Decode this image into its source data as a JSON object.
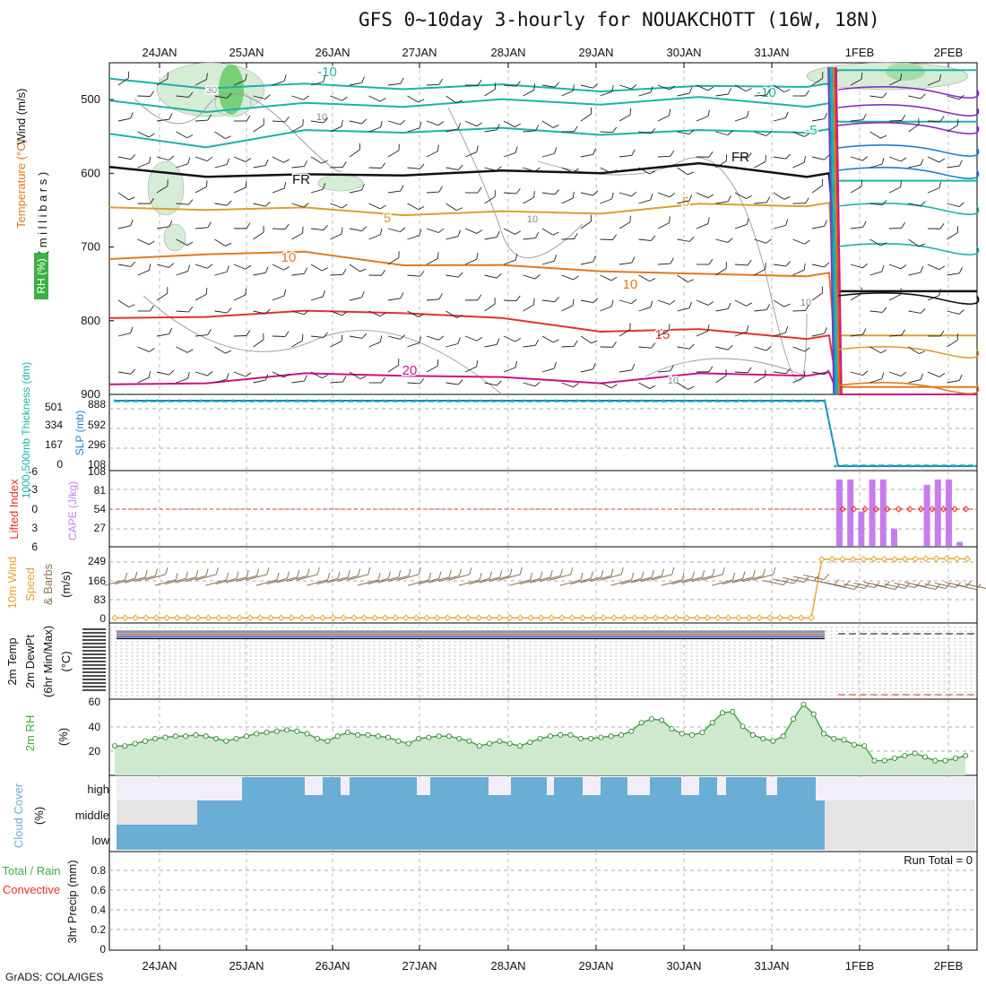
{
  "title": "GFS 0~10day 3-hourly for NOUAKCHOTT (16W, 18N)",
  "credit": "GrADS: COLA/IGES",
  "days": [
    "24JAN",
    "25JAN",
    "26JAN",
    "27JAN",
    "28JAN",
    "29JAN",
    "30JAN",
    "31JAN",
    "1FEB",
    "2FEB"
  ],
  "colors": {
    "temp_warm": "#e8302a",
    "temp_orange": "#e07a1e",
    "temp_gold": "#d9a030",
    "teal": "#19b3a8",
    "blue": "#1a7fd0",
    "purple": "#8a2bc7",
    "magenta": "#cc1188",
    "rh": "#3cb043",
    "cape": "#c77cee",
    "cloud": "#6aaed6",
    "wind": "#8b7355",
    "speed": "#e8a22c"
  },
  "panels": {
    "upper": {
      "ylabel_rh": "RH (%)",
      "ylabel_temp": "Temperature (°C)",
      "ylabel_wind": "Wind (m/s)",
      "ylabel_p": "( m i l l i b a r s )"
    },
    "slp": {
      "ylabel_thk": "1000-500mb Thickness (dm)",
      "ylabel_slp": "SLP (mb)"
    },
    "cape": {
      "ylabel_li": "Lifted Index",
      "ylabel_cape": "CAPE (J/kg)"
    },
    "wind10": {
      "ylabel": "10m Wind Speed & Barbs",
      "unit": "(m/s)"
    },
    "temp2m": {
      "ylabel": "2m Temp 2m DewPt (6hr Min/Max)",
      "unit": "(°C)"
    },
    "rh2m": {
      "ylabel": "2m RH",
      "unit": "(%)"
    },
    "cloud": {
      "ylabel": "Cloud Cover",
      "unit": "(%)",
      "levels": [
        "high",
        "middle",
        "low"
      ]
    },
    "precip": {
      "ylabel_total": "Total / Rain",
      "ylabel_conv": "Convective",
      "ylabel": "3hr Precip (mm)",
      "run_total": "Run Total = 0"
    }
  },
  "chart_data": [
    {
      "type": "heatmap",
      "name": "upper-air",
      "y_axis": "Pressure (millibars)",
      "y_ticks": [
        500,
        600,
        700,
        800,
        900
      ],
      "ylim": [
        900,
        450
      ],
      "x_ticks": [
        "24JAN",
        "25JAN",
        "26JAN",
        "27JAN",
        "28JAN",
        "29JAN",
        "30JAN",
        "31JAN",
        "1FEB",
        "2FEB"
      ],
      "contour_labels": [
        "-10",
        "-10",
        "-5",
        "FR",
        "FR",
        "5",
        "5",
        "10",
        "10",
        "15",
        "20",
        "30",
        "10",
        "10",
        "10",
        "10"
      ],
      "isotherms": [
        {
          "level": "-10",
          "color": "#19b3a8",
          "pressure": [
            475,
            480,
            482,
            481,
            483,
            484,
            485,
            478,
            460
          ]
        },
        {
          "level": "-10",
          "color": "#19b3a8",
          "pressure": [
            505,
            512,
            508,
            505,
            503,
            502,
            500,
            505,
            530
          ]
        },
        {
          "level": "-5",
          "color": "#19b3a8",
          "pressure": [
            550,
            560,
            545,
            540,
            542,
            543,
            545,
            540,
            610
          ]
        },
        {
          "level": "FR",
          "color": "#111111",
          "pressure": [
            595,
            600,
            605,
            598,
            600,
            595,
            590,
            600,
            760
          ]
        },
        {
          "level": "5",
          "color": "#d9a030",
          "pressure": [
            650,
            645,
            650,
            652,
            655,
            650,
            645,
            640,
            820
          ]
        },
        {
          "level": "10",
          "color": "#e07a1e",
          "pressure": [
            720,
            705,
            710,
            720,
            728,
            728,
            740,
            735,
            890
          ]
        },
        {
          "level": "15",
          "color": "#e8302a",
          "pressure": [
            800,
            790,
            790,
            785,
            800,
            810,
            815,
            820,
            900
          ]
        },
        {
          "level": "20",
          "color": "#cc1188",
          "pressure": [
            890,
            880,
            875,
            870,
            880,
            880,
            875,
            870,
            900
          ]
        }
      ]
    },
    {
      "type": "line",
      "name": "slp-thickness",
      "y_ticks_slp": [
        108,
        296,
        592,
        888
      ],
      "y_ticks_thk": [
        0,
        167,
        334,
        501
      ],
      "series": [
        {
          "values": [
            888,
            888,
            888,
            888,
            888,
            888,
            888,
            888,
            6,
            6
          ]
        }
      ]
    },
    {
      "type": "bar",
      "name": "cape-li",
      "y_ticks_cape": [
        27,
        54,
        81,
        108
      ],
      "y_ticks_li": [
        -6,
        -3,
        0,
        3,
        6
      ],
      "categories": [
        "1FEB00",
        "1FEB03",
        "1FEB06",
        "1FEB09",
        "1FEB12",
        "1FEB15",
        "1FEB18",
        "1FEB21",
        "2FEB00",
        "2FEB03",
        "2FEB06",
        "2FEB09",
        "2FEB12"
      ],
      "series": [
        {
          "values": [
            100,
            100,
            52,
            100,
            100,
            26,
            0,
            0,
            92,
            100,
            100,
            6,
            0
          ]
        }
      ]
    },
    {
      "type": "line",
      "name": "10m-wind",
      "y_ticks": [
        0,
        83,
        166,
        249
      ],
      "series": [
        {
          "values": [
            3,
            3,
            3,
            3,
            3,
            3,
            3,
            3,
            3,
            3,
            3,
            3,
            3,
            3,
            3,
            3,
            3,
            3,
            3,
            3,
            3,
            3,
            3,
            3,
            3,
            3,
            3,
            3,
            3,
            3,
            3,
            3,
            3,
            3,
            3,
            3,
            3,
            3,
            3,
            3,
            3,
            3,
            3,
            3,
            3,
            3,
            3,
            3,
            3,
            3,
            3,
            3,
            3,
            3,
            3,
            3,
            3,
            3,
            3,
            3,
            3,
            3,
            3,
            3,
            3,
            3,
            3,
            3,
            265,
            266,
            266,
            265,
            266,
            267,
            266,
            265,
            266,
            267,
            268,
            268,
            269,
            268,
            267
          ]
        }
      ]
    },
    {
      "type": "line",
      "name": "2m-rh",
      "y_ticks": [
        20,
        40,
        60
      ],
      "series": [
        {
          "values": [
            24,
            24,
            26,
            28,
            30,
            31,
            32,
            32,
            33,
            32,
            30,
            28,
            30,
            32,
            34,
            35,
            36,
            37,
            36,
            34,
            30,
            28,
            32,
            35,
            33,
            33,
            32,
            31,
            28,
            26,
            30,
            31,
            32,
            32,
            30,
            28,
            24,
            26,
            28,
            26,
            24,
            27,
            30,
            32,
            33,
            33,
            30,
            30,
            31,
            32,
            33,
            36,
            43,
            46,
            45,
            38,
            34,
            33,
            35,
            43,
            51,
            52,
            40,
            33,
            30,
            28,
            32,
            46,
            58,
            50,
            34,
            30,
            29,
            25,
            24,
            12,
            12,
            14,
            16,
            18,
            15,
            12,
            12,
            14,
            16
          ]
        }
      ]
    },
    {
      "type": "bar",
      "name": "cloud-cover",
      "levels": [
        "high",
        "middle",
        "low"
      ]
    },
    {
      "type": "line",
      "name": "3hr-precip",
      "y_ticks": [
        0,
        0.2,
        0.4,
        0.6,
        0.8
      ],
      "series": [
        {
          "values": [
            0
          ]
        }
      ]
    }
  ]
}
